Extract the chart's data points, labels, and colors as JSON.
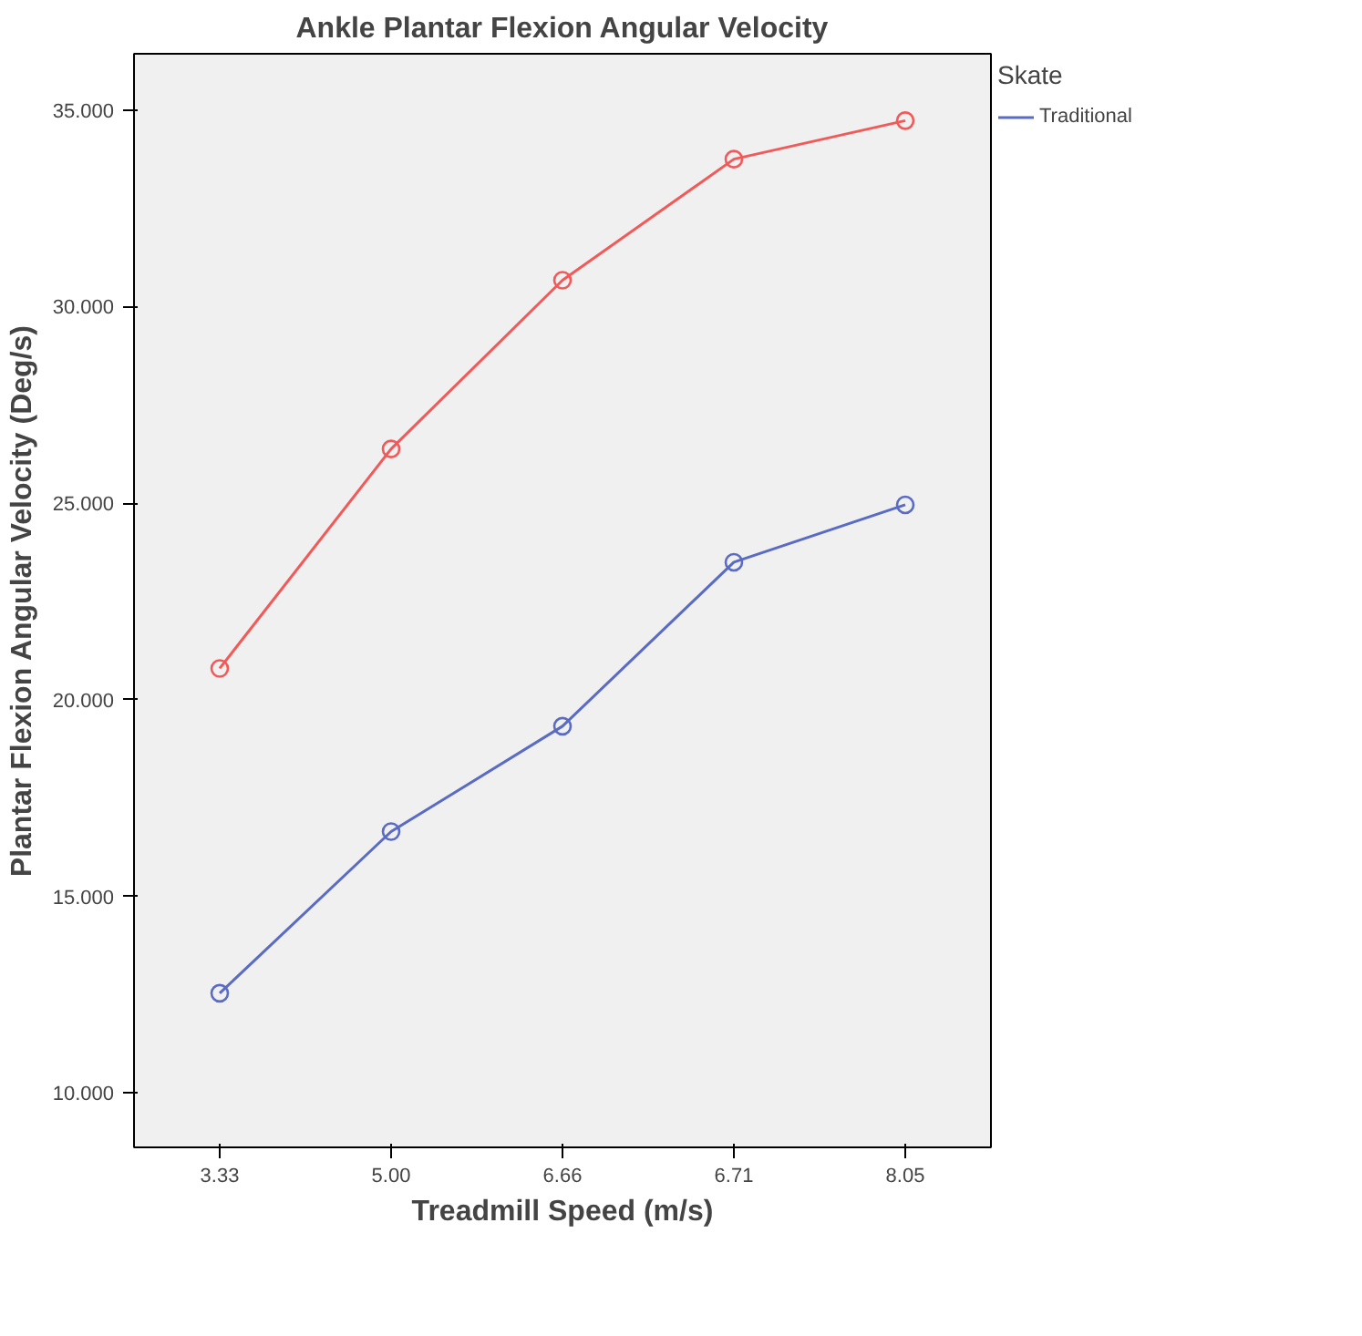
{
  "chart_data": {
    "type": "line",
    "title": "Ankle Plantar Flexion Angular Velocity",
    "xlabel": "Treadmill Speed (m/s)",
    "ylabel": "Plantar Flexion Angular Velocity (Deg/s)",
    "legend_title": "Skate",
    "categories": [
      "3.33",
      "5.00",
      "6.66",
      "6.71",
      "8.05"
    ],
    "series": [
      {
        "name": "Traditional",
        "color": "#5a6bc4",
        "values": [
          12.54,
          16.65,
          19.33,
          23.5,
          24.96
        ]
      },
      {
        "color": "#f25a5a",
        "values": [
          20.8,
          26.38,
          30.67,
          33.75,
          34.73
        ]
      }
    ],
    "ylim": [
      8.62,
      36.43
    ],
    "yticks": [
      {
        "value": 10,
        "label": "10.000"
      },
      {
        "value": 15,
        "label": "15.000"
      },
      {
        "value": 20,
        "label": "20.000"
      },
      {
        "value": 25,
        "label": "25.000"
      },
      {
        "value": 30,
        "label": "30.000"
      },
      {
        "value": 35,
        "label": "35.000"
      }
    ],
    "grid": false,
    "legend": "right",
    "marker": "circle",
    "line_style": "solid"
  }
}
